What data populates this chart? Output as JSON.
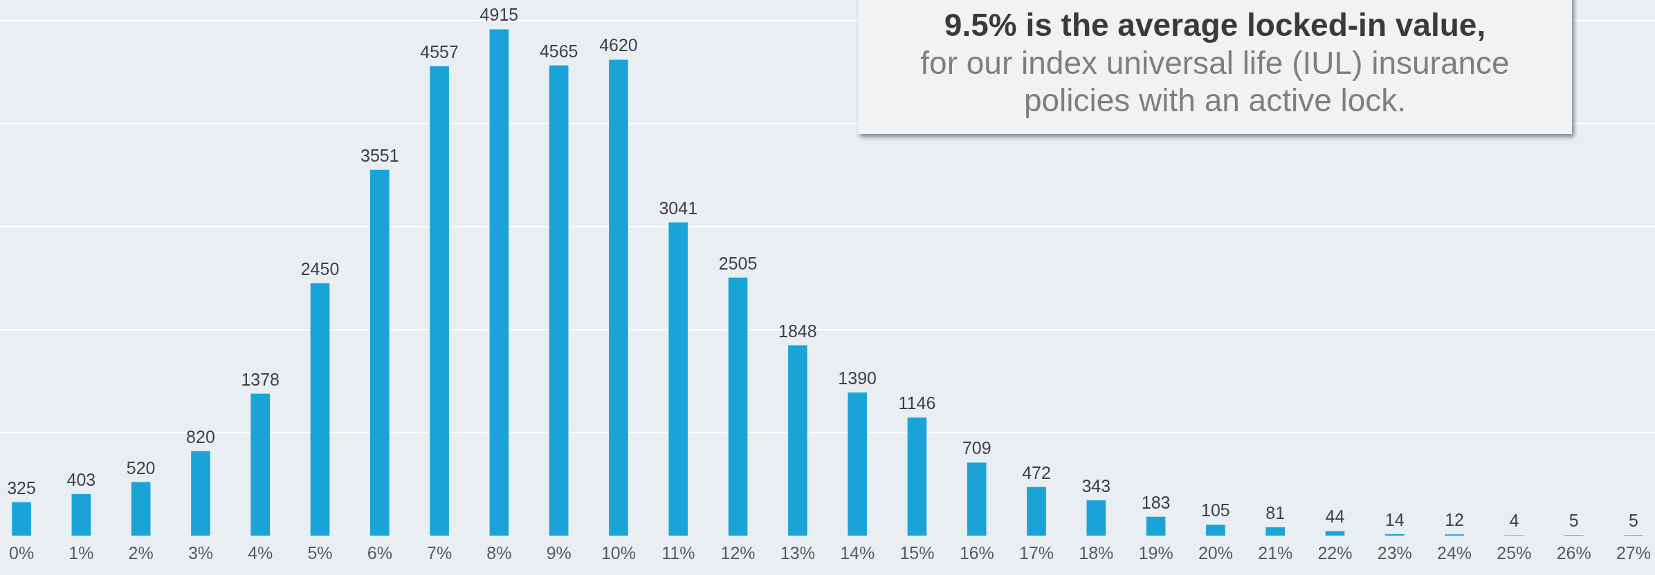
{
  "chart_data": {
    "type": "bar",
    "categories": [
      "0%",
      "1%",
      "2%",
      "3%",
      "4%",
      "5%",
      "6%",
      "7%",
      "8%",
      "9%",
      "10%",
      "11%",
      "12%",
      "13%",
      "14%",
      "15%",
      "16%",
      "17%",
      "18%",
      "19%",
      "20%",
      "21%",
      "22%",
      "23%",
      "24%",
      "25%",
      "26%",
      "27%"
    ],
    "values": [
      325,
      403,
      520,
      820,
      1378,
      2450,
      3551,
      4557,
      4915,
      4565,
      4620,
      3041,
      2505,
      1848,
      1390,
      1146,
      709,
      472,
      343,
      183,
      105,
      81,
      44,
      14,
      12,
      4,
      5,
      5
    ],
    "color": "#1aa3d6",
    "data_labels": true,
    "ylim": [
      0,
      5200
    ],
    "yticks": [
      {
        "value": 1000,
        "label": null
      },
      {
        "value": 2000,
        "label": null
      },
      {
        "value": 3000,
        "label": null
      },
      {
        "value": 4000,
        "label": null
      },
      {
        "value": 5000,
        "label": null
      }
    ],
    "grid": "y",
    "tick_labels": "x",
    "annotations": [
      "9.5% is the average locked-in value,",
      "for our index universal life (IUL) insurance policies with an active lock."
    ]
  }
}
